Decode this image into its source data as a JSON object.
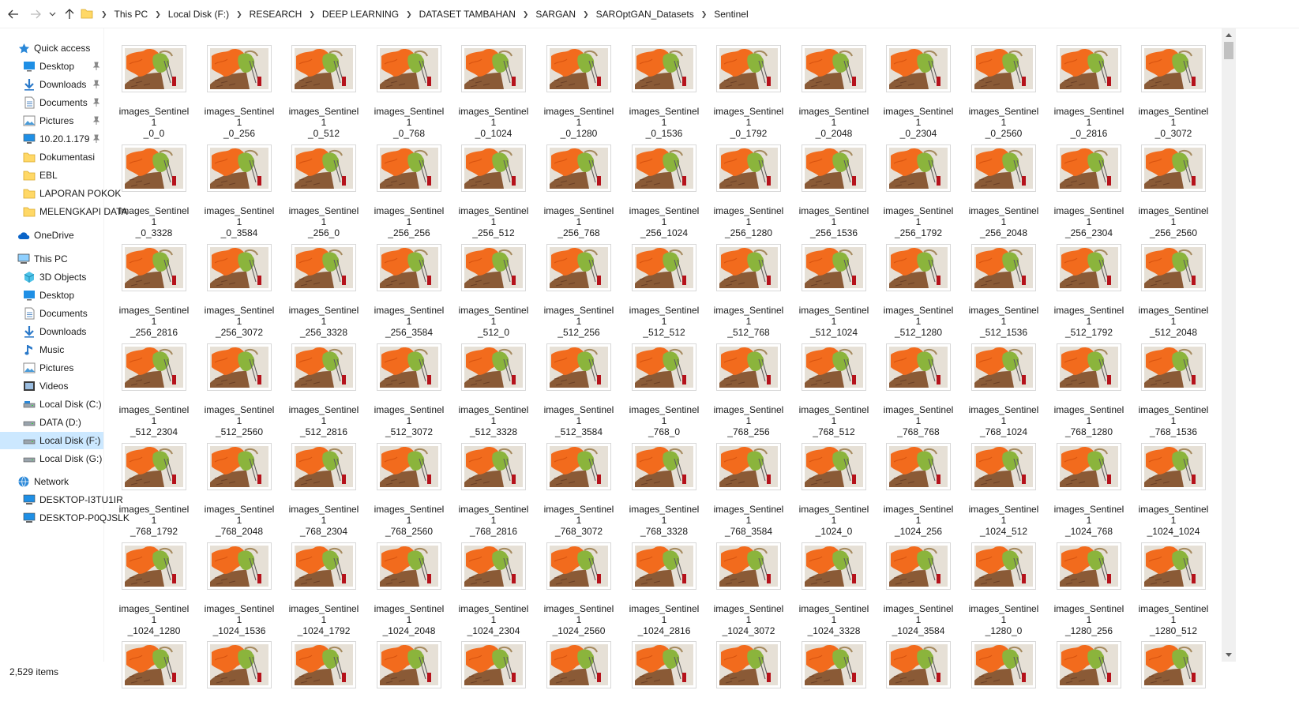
{
  "breadcrumb": [
    "This PC",
    "Local Disk (F:)",
    "RESEARCH",
    "DEEP LEARNING",
    "DATASET TAMBAHAN",
    "SARGAN",
    "SAROptGAN_Datasets",
    "Sentinel"
  ],
  "sidebar": {
    "quick_access": "Quick access",
    "quick_items": [
      {
        "label": "Desktop",
        "icon": "desktop-icon",
        "pinned": true
      },
      {
        "label": "Downloads",
        "icon": "downloads-icon",
        "pinned": true
      },
      {
        "label": "Documents",
        "icon": "documents-icon",
        "pinned": true
      },
      {
        "label": "Pictures",
        "icon": "pictures-icon",
        "pinned": true
      },
      {
        "label": "10.20.1.179",
        "icon": "network-drive-icon",
        "pinned": true
      },
      {
        "label": "Dokumentasi",
        "icon": "folder-icon",
        "pinned": false
      },
      {
        "label": "EBL",
        "icon": "folder-icon",
        "pinned": false
      },
      {
        "label": "LAPORAN POKOK",
        "icon": "folder-icon",
        "pinned": false
      },
      {
        "label": "MELENGKAPI DATA",
        "icon": "folder-icon",
        "pinned": false
      }
    ],
    "onedrive": "OneDrive",
    "this_pc": "This PC",
    "pc_items": [
      {
        "label": "3D Objects",
        "icon": "3d-objects-icon"
      },
      {
        "label": "Desktop",
        "icon": "desktop-icon"
      },
      {
        "label": "Documents",
        "icon": "documents-icon"
      },
      {
        "label": "Downloads",
        "icon": "downloads-icon"
      },
      {
        "label": "Music",
        "icon": "music-icon"
      },
      {
        "label": "Pictures",
        "icon": "pictures-icon"
      },
      {
        "label": "Videos",
        "icon": "videos-icon"
      },
      {
        "label": "Local Disk (C:)",
        "icon": "drive-icon"
      },
      {
        "label": "DATA (D:)",
        "icon": "drive-icon"
      },
      {
        "label": "Local Disk (F:)",
        "icon": "drive-icon",
        "selected": true
      },
      {
        "label": "Local Disk (G:)",
        "icon": "drive-icon"
      }
    ],
    "network": "Network",
    "network_items": [
      {
        "label": "DESKTOP-I3TU1IR",
        "icon": "computer-icon"
      },
      {
        "label": "DESKTOP-P0QJSLK",
        "icon": "computer-icon"
      }
    ]
  },
  "files": [
    [
      "images_Sentinel1",
      "_0_0"
    ],
    [
      "images_Sentinel1",
      "_0_256"
    ],
    [
      "images_Sentinel1",
      "_0_512"
    ],
    [
      "images_Sentinel1",
      "_0_768"
    ],
    [
      "images_Sentinel1",
      "_0_1024"
    ],
    [
      "images_Sentinel1",
      "_0_1280"
    ],
    [
      "images_Sentinel1",
      "_0_1536"
    ],
    [
      "images_Sentinel1",
      "_0_1792"
    ],
    [
      "images_Sentinel1",
      "_0_2048"
    ],
    [
      "images_Sentinel1",
      "_0_2304"
    ],
    [
      "images_Sentinel1",
      "_0_2560"
    ],
    [
      "images_Sentinel1",
      "_0_2816"
    ],
    [
      "images_Sentinel1",
      "_0_3072"
    ],
    [
      "images_Sentinel1",
      "_0_3328"
    ],
    [
      "images_Sentinel1",
      "_0_3584"
    ],
    [
      "images_Sentinel1",
      "_256_0"
    ],
    [
      "images_Sentinel1",
      "_256_256"
    ],
    [
      "images_Sentinel1",
      "_256_512"
    ],
    [
      "images_Sentinel1",
      "_256_768"
    ],
    [
      "images_Sentinel1",
      "_256_1024"
    ],
    [
      "images_Sentinel1",
      "_256_1280"
    ],
    [
      "images_Sentinel1",
      "_256_1536"
    ],
    [
      "images_Sentinel1",
      "_256_1792"
    ],
    [
      "images_Sentinel1",
      "_256_2048"
    ],
    [
      "images_Sentinel1",
      "_256_2304"
    ],
    [
      "images_Sentinel1",
      "_256_2560"
    ],
    [
      "images_Sentinel1",
      "_256_2816"
    ],
    [
      "images_Sentinel1",
      "_256_3072"
    ],
    [
      "images_Sentinel1",
      "_256_3328"
    ],
    [
      "images_Sentinel1",
      "_256_3584"
    ],
    [
      "images_Sentinel1",
      "_512_0"
    ],
    [
      "images_Sentinel1",
      "_512_256"
    ],
    [
      "images_Sentinel1",
      "_512_512"
    ],
    [
      "images_Sentinel1",
      "_512_768"
    ],
    [
      "images_Sentinel1",
      "_512_1024"
    ],
    [
      "images_Sentinel1",
      "_512_1280"
    ],
    [
      "images_Sentinel1",
      "_512_1536"
    ],
    [
      "images_Sentinel1",
      "_512_1792"
    ],
    [
      "images_Sentinel1",
      "_512_2048"
    ],
    [
      "images_Sentinel1",
      "_512_2304"
    ],
    [
      "images_Sentinel1",
      "_512_2560"
    ],
    [
      "images_Sentinel1",
      "_512_2816"
    ],
    [
      "images_Sentinel1",
      "_512_3072"
    ],
    [
      "images_Sentinel1",
      "_512_3328"
    ],
    [
      "images_Sentinel1",
      "_512_3584"
    ],
    [
      "images_Sentinel1",
      "_768_0"
    ],
    [
      "images_Sentinel1",
      "_768_256"
    ],
    [
      "images_Sentinel1",
      "_768_512"
    ],
    [
      "images_Sentinel1",
      "_768_768"
    ],
    [
      "images_Sentinel1",
      "_768_1024"
    ],
    [
      "images_Sentinel1",
      "_768_1280"
    ],
    [
      "images_Sentinel1",
      "_768_1536"
    ],
    [
      "images_Sentinel1",
      "_768_1792"
    ],
    [
      "images_Sentinel1",
      "_768_2048"
    ],
    [
      "images_Sentinel1",
      "_768_2304"
    ],
    [
      "images_Sentinel1",
      "_768_2560"
    ],
    [
      "images_Sentinel1",
      "_768_2816"
    ],
    [
      "images_Sentinel1",
      "_768_3072"
    ],
    [
      "images_Sentinel1",
      "_768_3328"
    ],
    [
      "images_Sentinel1",
      "_768_3584"
    ],
    [
      "images_Sentinel1",
      "_1024_0"
    ],
    [
      "images_Sentinel1",
      "_1024_256"
    ],
    [
      "images_Sentinel1",
      "_1024_512"
    ],
    [
      "images_Sentinel1",
      "_1024_768"
    ],
    [
      "images_Sentinel1",
      "_1024_1024"
    ],
    [
      "images_Sentinel1",
      "_1024_1280"
    ],
    [
      "images_Sentinel1",
      "_1024_1536"
    ],
    [
      "images_Sentinel1",
      "_1024_1792"
    ],
    [
      "images_Sentinel1",
      "_1024_2048"
    ],
    [
      "images_Sentinel1",
      "_1024_2304"
    ],
    [
      "images_Sentinel1",
      "_1024_2560"
    ],
    [
      "images_Sentinel1",
      "_1024_2816"
    ],
    [
      "images_Sentinel1",
      "_1024_3072"
    ],
    [
      "images_Sentinel1",
      "_1024_3328"
    ],
    [
      "images_Sentinel1",
      "_1024_3584"
    ],
    [
      "images_Sentinel1",
      "_1280_0"
    ],
    [
      "images_Sentinel1",
      "_1280_256"
    ],
    [
      "images_Sentinel1",
      "_1280_512"
    ],
    [
      "",
      ""
    ],
    [
      "",
      ""
    ],
    [
      "",
      ""
    ],
    [
      "",
      ""
    ],
    [
      "",
      ""
    ],
    [
      "",
      ""
    ],
    [
      "",
      ""
    ],
    [
      "",
      ""
    ],
    [
      "",
      ""
    ],
    [
      "",
      ""
    ],
    [
      "",
      ""
    ],
    [
      "",
      ""
    ],
    [
      "",
      ""
    ]
  ],
  "status": {
    "item_count": "2,529 items"
  },
  "colors": {
    "selected_bg": "#cce8ff",
    "folder_yellow": "#ffd866",
    "accent_blue": "#1e88e5",
    "thumb_orange": "#f26b1d",
    "thumb_green": "#8bb43c",
    "thumb_brown": "#8a5a36"
  }
}
